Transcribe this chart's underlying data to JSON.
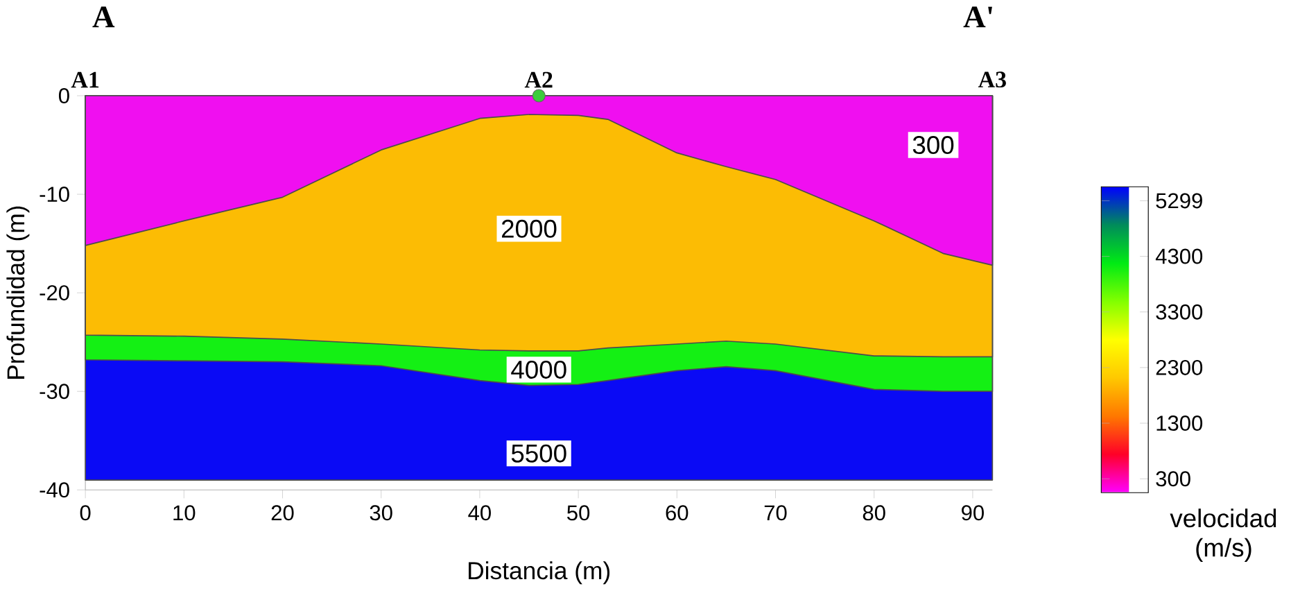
{
  "chart_data": {
    "type": "area",
    "xlabel": "Distancia (m)",
    "ylabel": "Profundidad (m)",
    "x": [
      0,
      10,
      20,
      30,
      40,
      45,
      50,
      53,
      60,
      65,
      70,
      80,
      87,
      92
    ],
    "xlim": [
      0,
      92
    ],
    "ylim": [
      -40,
      0
    ],
    "xticks": [
      0,
      10,
      20,
      30,
      40,
      50,
      60,
      70,
      80,
      90
    ],
    "yticks": [
      -40,
      -30,
      -20,
      -10,
      0
    ],
    "clabel": "velocidad (m/s)",
    "clim": [
      50,
      5550
    ],
    "cticks": [
      300,
      1300,
      2300,
      3300,
      4300,
      5299
    ],
    "series": [
      {
        "name": "5500",
        "color": "#0a0af5",
        "values": [
          -39,
          -39,
          -39,
          -39,
          -39,
          -39,
          -39,
          -39,
          -39,
          -39,
          -39,
          -39,
          -39,
          -39
        ]
      },
      {
        "name": "4000",
        "color": "#14f014",
        "values": [
          -26.8,
          -26.9,
          -27.0,
          -27.4,
          -28.9,
          -29.4,
          -29.3,
          -28.9,
          -27.9,
          -27.5,
          -27.9,
          -29.8,
          -30.0,
          -30.0
        ]
      },
      {
        "name": "2000",
        "color": "#fcbc04",
        "values": [
          -24.3,
          -24.4,
          -24.7,
          -25.2,
          -25.8,
          -25.9,
          -25.9,
          -25.6,
          -25.2,
          -24.9,
          -25.2,
          -26.4,
          -26.5,
          -26.5
        ]
      },
      {
        "name": "300",
        "color": "#f00ff0",
        "values": [
          -15.2,
          -12.7,
          -10.3,
          -5.5,
          -2.3,
          -1.9,
          -2.0,
          -2.4,
          -5.8,
          -7.2,
          -8.5,
          -12.7,
          -16.0,
          -17.2
        ]
      },
      {
        "type": "scatter",
        "color": "#3ccc3c",
        "marker": "circle",
        "x": [
          46
        ],
        "values": [
          0
        ]
      }
    ],
    "annotations": [
      "A",
      "A'",
      {
        "text": "A1",
        "x": 0,
        "y": 0
      },
      {
        "text": "A2",
        "x": 46,
        "y": 0
      },
      {
        "text": "A3",
        "x": 92,
        "y": 0
      }
    ]
  }
}
